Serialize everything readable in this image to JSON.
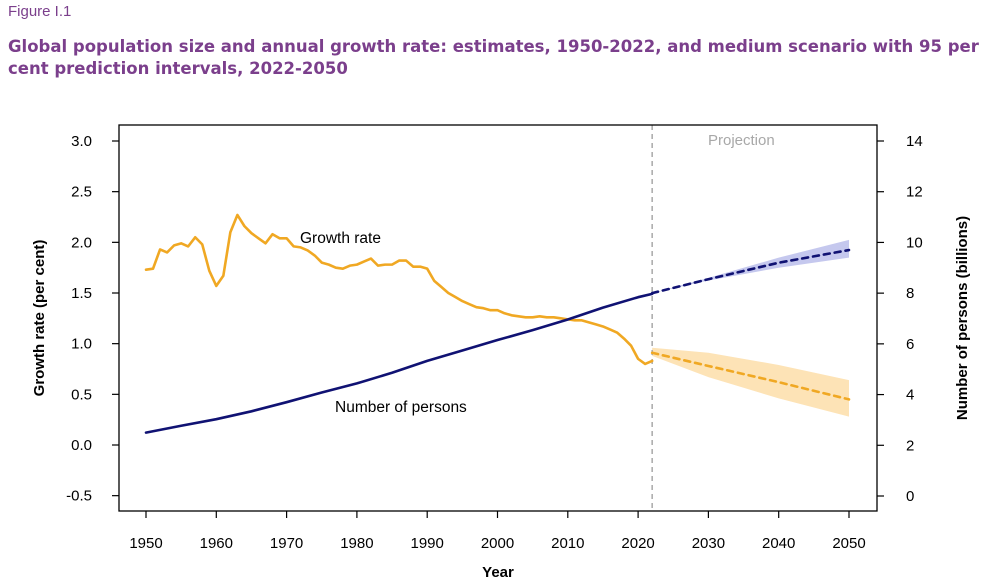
{
  "figure": {
    "label": "Figure I.1",
    "title": "Global population size and annual growth rate: estimates, 1950-2022, and medium scenario with 95 per cent prediction intervals, 2022-2050"
  },
  "colors": {
    "growth": "#f0a823",
    "growth_band": "#fde3b6",
    "population": "#101273",
    "population_band": "#c5c8ee",
    "projection_line": "#a8a8a8"
  },
  "chart_data": {
    "type": "line",
    "xlabel": "Year",
    "ylabel_left": "Growth rate (per cent)",
    "ylabel_right": "Number of persons (billions)",
    "xlim": [
      1950,
      2050
    ],
    "ylim_left": [
      -0.5,
      3.0
    ],
    "ylim_right": [
      0,
      14
    ],
    "x_ticks": [
      1950,
      1960,
      1970,
      1980,
      1990,
      2000,
      2010,
      2020,
      2030,
      2040,
      2050
    ],
    "y_ticks_left": [
      "-0.5",
      "0.0",
      "0.5",
      "1.0",
      "1.5",
      "2.0",
      "2.5",
      "3.0"
    ],
    "y_ticks_right": [
      "0",
      "2",
      "4",
      "6",
      "8",
      "10",
      "12",
      "14"
    ],
    "grid": false,
    "projection_start": 2022,
    "projection_label": "Projection",
    "series": [
      {
        "name": "Growth rate",
        "axis": "left",
        "x": [
          1950,
          1951,
          1952,
          1953,
          1954,
          1955,
          1956,
          1957,
          1958,
          1959,
          1960,
          1961,
          1962,
          1963,
          1964,
          1965,
          1966,
          1967,
          1968,
          1969,
          1970,
          1971,
          1972,
          1973,
          1974,
          1975,
          1976,
          1977,
          1978,
          1979,
          1980,
          1981,
          1982,
          1983,
          1984,
          1985,
          1986,
          1987,
          1988,
          1989,
          1990,
          1991,
          1992,
          1993,
          1994,
          1995,
          1996,
          1997,
          1998,
          1999,
          2000,
          2001,
          2002,
          2003,
          2004,
          2005,
          2006,
          2007,
          2008,
          2009,
          2010,
          2011,
          2012,
          2013,
          2014,
          2015,
          2016,
          2017,
          2018,
          2019,
          2020,
          2021,
          2022
        ],
        "values": [
          1.73,
          1.74,
          1.93,
          1.9,
          1.97,
          1.99,
          1.96,
          2.05,
          1.98,
          1.72,
          1.57,
          1.67,
          2.1,
          2.27,
          2.16,
          2.09,
          2.04,
          1.99,
          2.08,
          2.04,
          2.04,
          1.96,
          1.95,
          1.92,
          1.87,
          1.8,
          1.78,
          1.75,
          1.74,
          1.77,
          1.78,
          1.81,
          1.84,
          1.77,
          1.78,
          1.78,
          1.82,
          1.82,
          1.76,
          1.76,
          1.74,
          1.62,
          1.56,
          1.5,
          1.46,
          1.42,
          1.39,
          1.36,
          1.35,
          1.33,
          1.33,
          1.3,
          1.28,
          1.27,
          1.26,
          1.26,
          1.27,
          1.26,
          1.26,
          1.25,
          1.24,
          1.23,
          1.23,
          1.21,
          1.19,
          1.17,
          1.14,
          1.11,
          1.05,
          0.98,
          0.85,
          0.8,
          0.83
        ]
      },
      {
        "name": "Growth rate (projection)",
        "axis": "left",
        "x": [
          2022,
          2030,
          2040,
          2050
        ],
        "values": [
          0.91,
          0.78,
          0.62,
          0.45
        ],
        "lower": [
          0.88,
          0.67,
          0.46,
          0.28
        ],
        "upper": [
          0.96,
          0.91,
          0.79,
          0.64
        ]
      },
      {
        "name": "Number of persons",
        "axis": "right",
        "x": [
          1950,
          1955,
          1960,
          1965,
          1970,
          1975,
          1980,
          1985,
          1990,
          1995,
          2000,
          2005,
          2010,
          2015,
          2020,
          2022
        ],
        "values": [
          2.5,
          2.77,
          3.03,
          3.34,
          3.7,
          4.08,
          4.44,
          4.86,
          5.33,
          5.74,
          6.15,
          6.54,
          6.96,
          7.43,
          7.84,
          7.97
        ]
      },
      {
        "name": "Number of persons (projection)",
        "axis": "right",
        "x": [
          2022,
          2030,
          2040,
          2050
        ],
        "values": [
          8.0,
          8.55,
          9.2,
          9.7
        ],
        "lower": [
          8.0,
          8.5,
          9.0,
          9.4
        ],
        "upper": [
          8.0,
          8.6,
          9.4,
          10.1
        ]
      }
    ],
    "annotations": {
      "growth_label": "Growth rate",
      "population_label": "Number of persons"
    }
  }
}
